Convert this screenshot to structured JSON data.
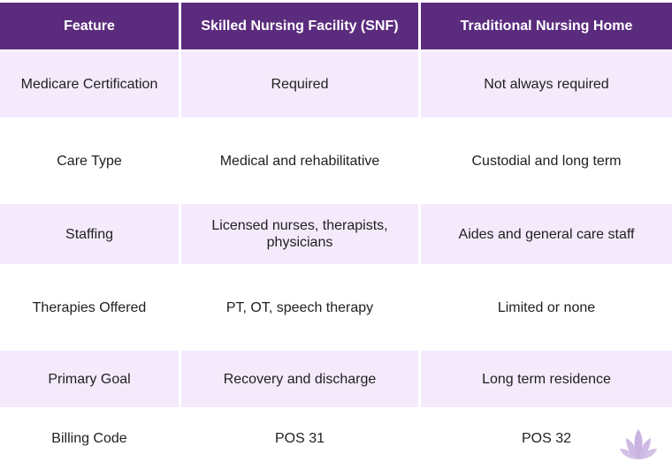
{
  "table": {
    "headers": [
      "Feature",
      "Skilled Nursing Facility (SNF)",
      "Traditional Nursing Home"
    ],
    "rows": [
      [
        "Medicare Certification",
        "Required",
        "Not always required"
      ],
      [
        "Care Type",
        "Medical and rehabilitative",
        "Custodial and long term"
      ],
      [
        "Staffing",
        "Licensed nurses, therapists, physicians",
        "Aides and general care staff"
      ],
      [
        "Therapies Offered",
        "PT, OT, speech therapy",
        "Limited or none"
      ],
      [
        "Primary Goal",
        "Recovery and discharge",
        "Long term residence"
      ],
      [
        "Billing Code",
        "POS 31",
        "POS 32"
      ]
    ]
  },
  "colors": {
    "header_bg": "#5b2c7e",
    "shaded_row_bg": "#f4eafc",
    "logo": "#c9b3e0"
  },
  "icons": {
    "logo": "lotus-icon"
  }
}
